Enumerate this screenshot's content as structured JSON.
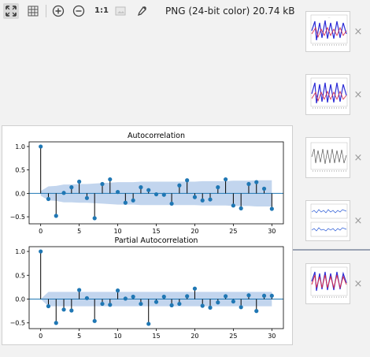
{
  "toolbar": {
    "ratio_label": "1:1",
    "image_info": "PNG (24-bit color) 20.74 kB",
    "icons": [
      "fit-to-window-icon",
      "grid-icon",
      "zoom-in-icon",
      "zoom-out-icon",
      "actual-size-icon",
      "background-icon",
      "color-picker-icon"
    ]
  },
  "thumbnails": [
    {
      "name": "thumb-timeseries-1",
      "kind": "multi-line"
    },
    {
      "name": "thumb-timeseries-2",
      "kind": "multi-line"
    },
    {
      "name": "thumb-timeseries-3",
      "kind": "gray-line"
    },
    {
      "name": "thumb-residuals",
      "kind": "two-panel"
    },
    {
      "name": "thumb-timeseries-4",
      "kind": "multi-line"
    }
  ],
  "thumb_close_glyph": "×",
  "chart_data": [
    {
      "type": "stem",
      "title": "Autocorrelation",
      "x": [
        0,
        1,
        2,
        3,
        4,
        5,
        6,
        7,
        8,
        9,
        10,
        11,
        12,
        13,
        14,
        15,
        16,
        17,
        18,
        19,
        20,
        21,
        22,
        23,
        24,
        25,
        26,
        27,
        28,
        29,
        30
      ],
      "values": [
        1.0,
        -0.12,
        -0.48,
        0.01,
        0.13,
        0.25,
        -0.1,
        -0.53,
        0.2,
        0.3,
        0.03,
        -0.2,
        -0.15,
        0.13,
        0.07,
        -0.02,
        -0.03,
        -0.22,
        0.17,
        0.28,
        -0.08,
        -0.15,
        -0.13,
        0.13,
        0.3,
        -0.26,
        -0.32,
        0.2,
        0.24,
        0.1,
        -0.33
      ],
      "confidence_band": [
        0.05,
        0.15,
        0.16,
        0.19,
        0.19,
        0.2,
        0.2,
        0.21,
        0.22,
        0.23,
        0.24,
        0.24,
        0.24,
        0.25,
        0.25,
        0.25,
        0.25,
        0.25,
        0.25,
        0.25,
        0.25,
        0.26,
        0.26,
        0.26,
        0.26,
        0.27,
        0.27,
        0.27,
        0.28,
        0.28,
        0.28
      ],
      "xticks": [
        0,
        5,
        10,
        15,
        20,
        25,
        30
      ],
      "yticks": [
        1.0,
        0.5,
        0.0,
        -0.5
      ],
      "ytick_labels": [
        "1.0",
        "0.5",
        "0.0",
        "−0.5"
      ],
      "xlim": [
        -1.5,
        31.5
      ],
      "ylim": [
        -0.65,
        1.1
      ]
    },
    {
      "type": "stem",
      "title": "Partial Autocorrelation",
      "x": [
        0,
        1,
        2,
        3,
        4,
        5,
        6,
        7,
        8,
        9,
        10,
        11,
        12,
        13,
        14,
        15,
        16,
        17,
        18,
        19,
        20,
        21,
        22,
        23,
        24,
        25,
        26,
        27,
        28,
        29,
        30
      ],
      "values": [
        1.0,
        -0.15,
        -0.5,
        -0.22,
        -0.24,
        0.19,
        0.02,
        -0.46,
        -0.1,
        -0.12,
        0.18,
        0.01,
        0.05,
        -0.1,
        -0.52,
        -0.06,
        0.05,
        -0.13,
        -0.1,
        0.06,
        0.22,
        -0.14,
        -0.18,
        -0.07,
        0.06,
        -0.05,
        -0.17,
        0.08,
        -0.25,
        0.07,
        0.07
      ],
      "confidence_band": [
        0.0,
        0.15,
        0.15,
        0.15,
        0.15,
        0.15,
        0.15,
        0.15,
        0.15,
        0.15,
        0.15,
        0.15,
        0.15,
        0.15,
        0.15,
        0.15,
        0.15,
        0.15,
        0.15,
        0.15,
        0.15,
        0.15,
        0.15,
        0.15,
        0.15,
        0.15,
        0.15,
        0.15,
        0.15,
        0.15,
        0.15
      ],
      "xticks": [
        0,
        5,
        10,
        15,
        20,
        25,
        30
      ],
      "yticks": [
        1.0,
        0.5,
        0.0,
        -0.5
      ],
      "ytick_labels": [
        "1.0",
        "0.5",
        "0.0",
        "−0.5"
      ],
      "xlim": [
        -1.5,
        31.5
      ],
      "ylim": [
        -0.62,
        1.1
      ]
    }
  ],
  "colors": {
    "marker": "#1f77b4",
    "stem": "#000000",
    "band": "#aec7e8",
    "zero_line": "#1f77b4"
  }
}
